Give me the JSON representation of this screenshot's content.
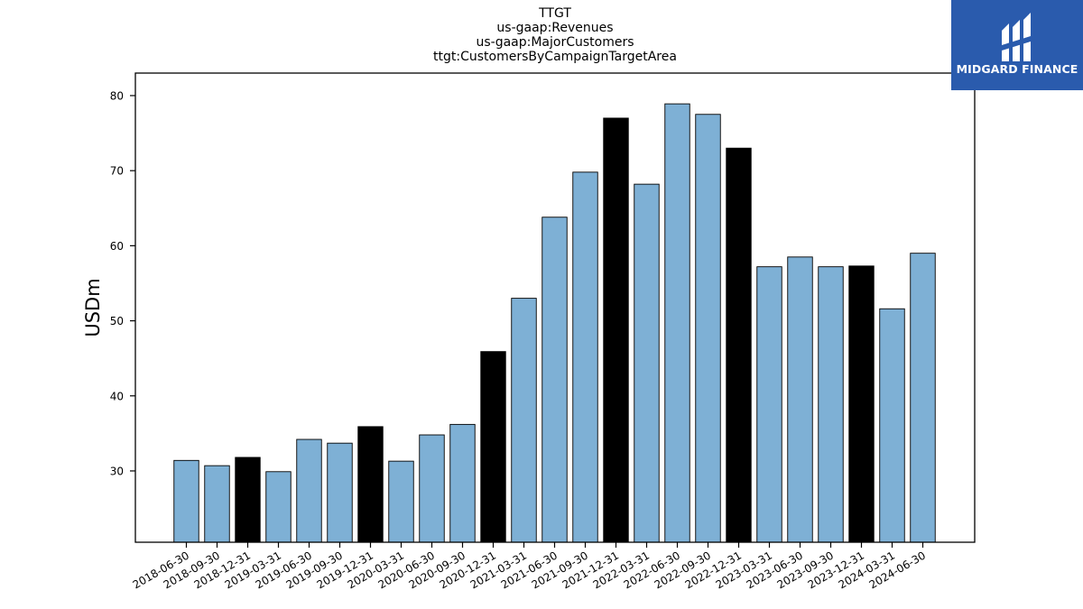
{
  "chart_data": {
    "type": "bar",
    "title_lines": [
      "TTGT",
      "us-gaap:Revenues",
      "us-gaap:MajorCustomers",
      "ttgt:CustomersByCampaignTargetArea"
    ],
    "xlabel": "",
    "ylabel": "USDm",
    "ylim": [
      20.5,
      83
    ],
    "yticks": [
      30,
      40,
      50,
      60,
      70,
      80
    ],
    "grid": false,
    "categories": [
      "2018-06-30",
      "2018-09-30",
      "2018-12-31",
      "2019-03-31",
      "2019-06-30",
      "2019-09-30",
      "2019-12-31",
      "2020-03-31",
      "2020-06-30",
      "2020-09-30",
      "2020-12-31",
      "2021-03-31",
      "2021-06-30",
      "2021-09-30",
      "2021-12-31",
      "2022-03-31",
      "2022-06-30",
      "2022-09-30",
      "2022-12-31",
      "2023-03-31",
      "2023-06-30",
      "2023-09-30",
      "2023-12-31",
      "2024-03-31",
      "2024-06-30"
    ],
    "values": [
      31.4,
      30.7,
      31.8,
      29.9,
      34.2,
      33.7,
      35.9,
      31.3,
      34.8,
      36.2,
      45.9,
      53.0,
      63.8,
      69.8,
      77.0,
      68.2,
      78.9,
      77.5,
      73.0,
      57.2,
      58.5,
      57.2,
      57.3,
      51.6,
      59.0
    ],
    "colors": {
      "quarter": "#7eb0d5",
      "year_end": "#000000",
      "edge": "#000000"
    },
    "bar_color_keys": [
      "quarter",
      "quarter",
      "year_end",
      "quarter",
      "quarter",
      "quarter",
      "year_end",
      "quarter",
      "quarter",
      "quarter",
      "year_end",
      "quarter",
      "quarter",
      "quarter",
      "year_end",
      "quarter",
      "quarter",
      "quarter",
      "year_end",
      "quarter",
      "quarter",
      "quarter",
      "year_end",
      "quarter",
      "quarter"
    ]
  },
  "logo": {
    "text": "MIDGARD FINANCE",
    "background": "#2a5bad",
    "icon": "midgard-mark-icon"
  }
}
